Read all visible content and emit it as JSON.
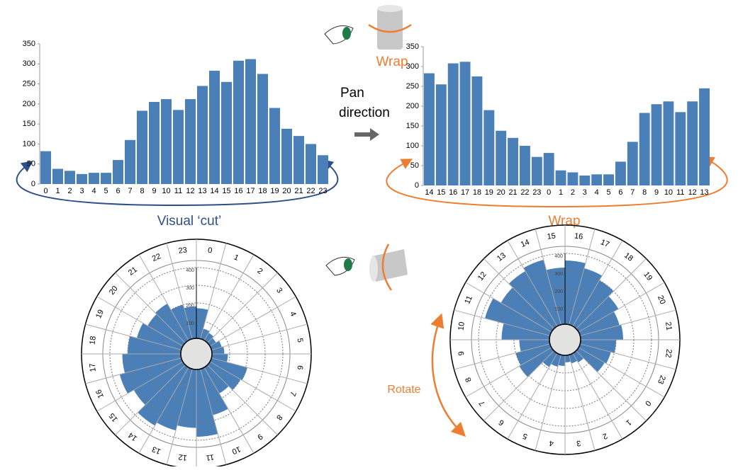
{
  "chart_data": [
    {
      "type": "bar",
      "color": "#4a7fb8",
      "categories": [
        "0",
        "1",
        "2",
        "3",
        "4",
        "5",
        "6",
        "7",
        "8",
        "9",
        "10",
        "11",
        "12",
        "13",
        "14",
        "15",
        "16",
        "17",
        "18",
        "19",
        "20",
        "21",
        "22",
        "23"
      ],
      "values": [
        82,
        38,
        33,
        25,
        28,
        28,
        60,
        110,
        183,
        205,
        212,
        185,
        212,
        245,
        283,
        255,
        308,
        312,
        275,
        190,
        138,
        120,
        100,
        72
      ],
      "ylim": [
        0,
        350
      ],
      "yticks": [
        0,
        50,
        100,
        150,
        200,
        250,
        300,
        350
      ]
    },
    {
      "type": "bar",
      "color": "#4a7fb8",
      "categories": [
        "14",
        "15",
        "16",
        "17",
        "18",
        "19",
        "20",
        "21",
        "22",
        "23",
        "0",
        "1",
        "2",
        "3",
        "4",
        "5",
        "6",
        "7",
        "8",
        "9",
        "10",
        "11",
        "12",
        "13"
      ],
      "values": [
        283,
        255,
        308,
        312,
        275,
        190,
        138,
        120,
        100,
        72,
        82,
        38,
        33,
        25,
        28,
        28,
        60,
        110,
        183,
        205,
        212,
        185,
        212,
        245
      ],
      "ylim": [
        0,
        350
      ],
      "yticks": [
        0,
        50,
        100,
        150,
        200,
        250,
        300,
        350
      ]
    },
    {
      "type": "polar",
      "color": "#4a7fb8",
      "categories": [
        "0",
        "1",
        "2",
        "3",
        "4",
        "5",
        "6",
        "7",
        "8",
        "9",
        "10",
        "11",
        "12",
        "13",
        "14",
        "15",
        "16",
        "17",
        "18",
        "19",
        "20",
        "21",
        "22",
        "23"
      ],
      "values": [
        170,
        60,
        50,
        40,
        60,
        70,
        90,
        210,
        200,
        170,
        270,
        380,
        330,
        360,
        380,
        320,
        360,
        330,
        300,
        260,
        230,
        240,
        200,
        180
      ],
      "ylim": [
        0,
        400
      ],
      "yticks": [
        0,
        100,
        200,
        300,
        400
      ]
    },
    {
      "type": "polar",
      "color": "#4a7fb8",
      "categories": [
        "16",
        "17",
        "18",
        "19",
        "20",
        "21",
        "22",
        "23",
        "0",
        "1",
        "2",
        "3",
        "4",
        "5",
        "6",
        "7",
        "8",
        "9",
        "10",
        "11",
        "12",
        "13",
        "14",
        "15"
      ],
      "values": [
        360,
        330,
        300,
        260,
        230,
        240,
        200,
        180,
        170,
        60,
        50,
        40,
        60,
        70,
        90,
        210,
        200,
        170,
        270,
        380,
        330,
        360,
        380,
        320
      ],
      "ylim": [
        0,
        400
      ],
      "yticks": [
        0,
        100,
        200,
        300,
        400
      ]
    }
  ],
  "annotations": [
    "Wrap",
    "Pan",
    "direction",
    "Visual ‘cut’",
    "Wrap",
    "Rotate"
  ]
}
